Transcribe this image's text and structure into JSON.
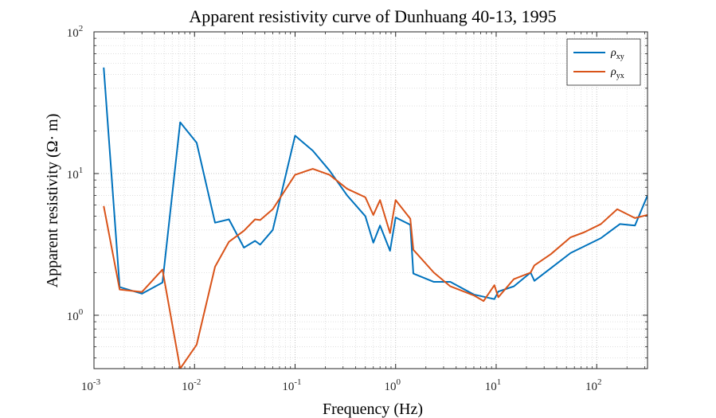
{
  "chart_data": {
    "type": "line",
    "title": "Apparent resistivity curve of Dunhuang 40-13, 1995",
    "xlabel": "Frequency (Hz)",
    "ylabel": "Apparent resistivity (Ω· m)",
    "x_scale": "log",
    "y_scale": "log",
    "xlim": [
      0.001,
      320
    ],
    "ylim": [
      0.42,
      100
    ],
    "grid": true,
    "minor_grid": true,
    "legend_position": "top-right",
    "x_ticks": [
      {
        "value": 0.001,
        "base": "10",
        "exp": "-3"
      },
      {
        "value": 0.01,
        "base": "10",
        "exp": "-2"
      },
      {
        "value": 0.1,
        "base": "10",
        "exp": "-1"
      },
      {
        "value": 1,
        "base": "10",
        "exp": "0"
      },
      {
        "value": 10,
        "base": "10",
        "exp": "1"
      },
      {
        "value": 100,
        "base": "10",
        "exp": "2"
      }
    ],
    "y_ticks": [
      {
        "value": 1,
        "base": "10",
        "exp": "0"
      },
      {
        "value": 10,
        "base": "10",
        "exp": "1"
      },
      {
        "value": 100,
        "base": "10",
        "exp": "2"
      }
    ],
    "series": [
      {
        "name": "ρxy",
        "symbol": "ρ",
        "subscript": "xy",
        "color": "#0072bd",
        "x": [
          0.00125,
          0.0018,
          0.003,
          0.0048,
          0.0072,
          0.0105,
          0.016,
          0.022,
          0.031,
          0.04,
          0.045,
          0.06,
          0.1,
          0.15,
          0.22,
          0.33,
          0.5,
          0.6,
          0.7,
          0.88,
          1.0,
          1.4,
          1.5,
          2.4,
          3.5,
          6.0,
          9.6,
          10.5,
          15.0,
          22.0,
          24.0,
          35.0,
          55.0,
          110.0,
          170.0,
          240.0,
          320.0
        ],
        "y": [
          56,
          1.58,
          1.42,
          1.7,
          23,
          16.5,
          4.5,
          4.75,
          3.0,
          3.35,
          3.15,
          4.0,
          18.5,
          14.5,
          10.5,
          7.0,
          5.0,
          3.25,
          4.3,
          2.85,
          4.9,
          4.35,
          1.97,
          1.72,
          1.72,
          1.4,
          1.3,
          1.47,
          1.6,
          2.0,
          1.75,
          2.15,
          2.75,
          3.5,
          4.4,
          4.3,
          7.0
        ]
      },
      {
        "name": "ρyx",
        "symbol": "ρ",
        "subscript": "yx",
        "color": "#d95319",
        "x": [
          0.00125,
          0.0018,
          0.003,
          0.0048,
          0.0072,
          0.0105,
          0.016,
          0.022,
          0.031,
          0.04,
          0.045,
          0.06,
          0.1,
          0.15,
          0.22,
          0.33,
          0.5,
          0.6,
          0.7,
          0.88,
          1.0,
          1.4,
          1.5,
          2.4,
          3.5,
          6.0,
          7.5,
          9.6,
          10.5,
          15.0,
          22.0,
          24.0,
          35.0,
          55.0,
          75.0,
          110.0,
          160.0,
          240.0,
          320.0
        ],
        "y": [
          5.9,
          1.52,
          1.46,
          2.1,
          0.42,
          0.62,
          2.2,
          3.3,
          3.95,
          4.75,
          4.7,
          5.6,
          9.8,
          10.8,
          9.8,
          7.8,
          6.8,
          5.1,
          6.5,
          3.8,
          6.5,
          4.8,
          2.9,
          2.0,
          1.6,
          1.38,
          1.26,
          1.63,
          1.34,
          1.8,
          2.0,
          2.25,
          2.7,
          3.55,
          3.85,
          4.4,
          5.6,
          4.85,
          5.1
        ]
      }
    ]
  }
}
